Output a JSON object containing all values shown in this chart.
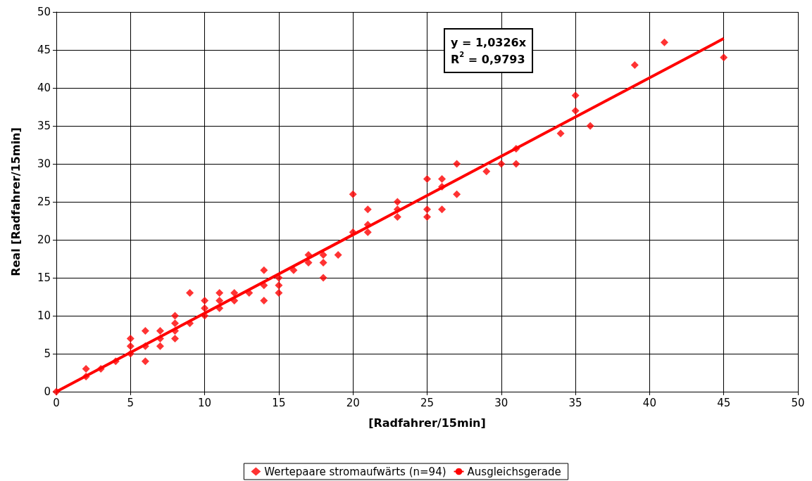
{
  "chart_data": {
    "type": "scatter",
    "xlabel": "[Radfahrer/15min]",
    "ylabel": "Real [Radfahrer/15min]",
    "xlim": [
      0,
      50
    ],
    "xticks": [
      0,
      5,
      10,
      15,
      20,
      25,
      30,
      35,
      40,
      45,
      50
    ],
    "ylim": [
      0,
      50
    ],
    "yticks": [
      0,
      5,
      10,
      15,
      20,
      25,
      30,
      35,
      40,
      45,
      50
    ],
    "grid": true,
    "legend": "bottom",
    "marker": "diamond",
    "annotations": [
      "y = 1,0326x",
      "R$^{2}$ = 0,9793"
    ],
    "series": [
      {
        "name": "Wertepaare stromaufwärts (n=94)",
        "color": "#ff0000",
        "x": [
          0,
          2,
          2,
          3,
          4,
          5,
          5,
          5,
          6,
          6,
          6,
          7,
          7,
          7,
          8,
          8,
          8,
          8,
          9,
          9,
          10,
          10,
          10,
          11,
          11,
          11,
          12,
          12,
          13,
          14,
          14,
          14,
          15,
          15,
          15,
          16,
          17,
          17,
          18,
          18,
          18,
          19,
          20,
          20,
          21,
          21,
          21,
          23,
          23,
          23,
          25,
          25,
          25,
          26,
          26,
          26,
          27,
          27,
          29,
          30,
          31,
          31,
          34,
          35,
          35,
          36,
          39,
          41,
          45
        ],
        "values": [
          0,
          2,
          3,
          3,
          4,
          5,
          6,
          7,
          4,
          6,
          8,
          6,
          7,
          8,
          7,
          8,
          9,
          10,
          9,
          13,
          10,
          11,
          12,
          11,
          12,
          13,
          12,
          13,
          13,
          12,
          14,
          16,
          13,
          14,
          15,
          16,
          17,
          18,
          15,
          17,
          18,
          18,
          21,
          26,
          21,
          22,
          24,
          23,
          24,
          25,
          23,
          24,
          28,
          24,
          27,
          28,
          26,
          30,
          29,
          30,
          30,
          32,
          34,
          37,
          39,
          35,
          43,
          46,
          44
        ]
      },
      {
        "name": "Ausgleichsgerade",
        "type": "line",
        "color": "#ff0000",
        "line_style": "solid",
        "marker": "none",
        "x": [
          0,
          45
        ],
        "values": [
          0,
          46.5
        ]
      }
    ]
  }
}
